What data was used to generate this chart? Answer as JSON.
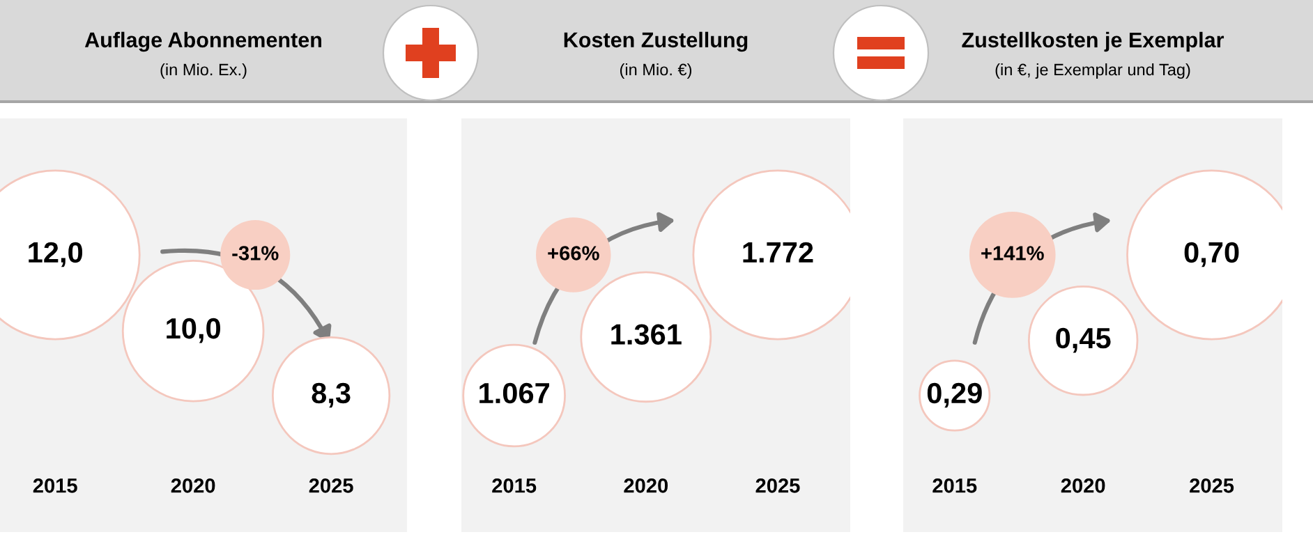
{
  "chart_data": [
    {
      "type": "other",
      "title": "Auflage Abonnementen",
      "subtitle": "(in Mio. Ex.)",
      "categories": [
        "2015",
        "2020",
        "2025"
      ],
      "values": [
        12.0,
        10.0,
        8.3
      ],
      "value_labels": [
        "12,0",
        "10,0",
        "8,3"
      ],
      "color": "#ffffff",
      "annotations": [
        "-31%"
      ]
    },
    {
      "type": "other",
      "title": "Kosten Zustellung",
      "subtitle": "(in Mio. €)",
      "categories": [
        "2015",
        "2020",
        "2025"
      ],
      "values": [
        1067,
        1361,
        1772
      ],
      "value_labels": [
        "1.067",
        "1.361",
        "1.772"
      ],
      "color": "#ffffff",
      "annotations": [
        "+66%"
      ]
    },
    {
      "type": "other",
      "title": "Zustellkosten je Exemplar",
      "subtitle": "(in €, je Exemplar und Tag)",
      "categories": [
        "2015",
        "2020",
        "2025"
      ],
      "values": [
        0.29,
        0.45,
        0.7
      ],
      "value_labels": [
        "0,29",
        "0,45",
        "0,70"
      ],
      "color": "#ffffff",
      "annotations": [
        "+141%"
      ]
    }
  ]
}
